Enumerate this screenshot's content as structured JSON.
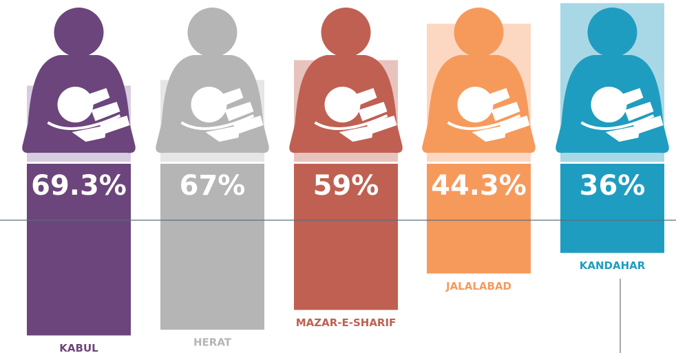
{
  "chart_data": {
    "type": "bar",
    "categories": [
      "KABUL",
      "HERAT",
      "MAZAR-E-SHARIF",
      "JALALABAD",
      "KANDAHAR"
    ],
    "values": [
      69.3,
      67,
      59,
      44.3,
      36
    ],
    "value_labels": [
      "69.3%",
      "67%",
      "59%",
      "44.3%",
      "36%"
    ],
    "colors": [
      "#6b457c",
      "#b5b5b6",
      "#c06052",
      "#f69a5c",
      "#1f9dc0"
    ],
    "background_colors": [
      "#d8cce0",
      "#e6e6e6",
      "#e8c3bd",
      "#fcd8c2",
      "#a8d8e6"
    ],
    "ylim": [
      0,
      100
    ]
  }
}
